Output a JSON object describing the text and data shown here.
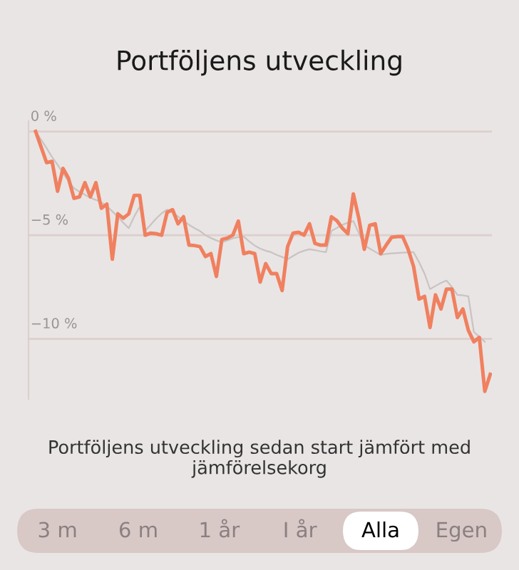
{
  "chart_data": {
    "type": "line",
    "title": "Portföljens utveckling",
    "categories": [
      null,
      null,
      null,
      null,
      null,
      null,
      null,
      null,
      null,
      null,
      null,
      null,
      null,
      null,
      null,
      null,
      null,
      null,
      null,
      null,
      null,
      null,
      null,
      null,
      null,
      null,
      null,
      null,
      null,
      null,
      null,
      null,
      null,
      null,
      null,
      null,
      null,
      null,
      null,
      null,
      null,
      null,
      null,
      null,
      null,
      null,
      null,
      null,
      null,
      null,
      null,
      null,
      null,
      null,
      null,
      null,
      null,
      null,
      null,
      null,
      null,
      null,
      null,
      null,
      null,
      null,
      null,
      null,
      null,
      null,
      null,
      null,
      null,
      null,
      null,
      null,
      null,
      null,
      null,
      null,
      null,
      null,
      null,
      null
    ],
    "series": [
      {
        "color": "#c9c3c2",
        "values": [
          0,
          -0.4,
          -0.8,
          -1.23,
          -1.6,
          -2.0,
          -2.4,
          -2.74,
          -2.9,
          -3.05,
          -3.2,
          -3.3,
          -3.42,
          -3.6,
          -3.85,
          -4.11,
          -4.4,
          -4.66,
          -4.1,
          -3.63,
          -4.79,
          -4.5,
          -4.2,
          -3.95,
          -3.77,
          -3.9,
          -4.1,
          -4.3,
          -4.5,
          -4.66,
          -4.8,
          -5.0,
          -5.14,
          -5.25,
          -5.34,
          -5.25,
          -5.15,
          -5.1,
          -5.07,
          -5.3,
          -5.5,
          -5.65,
          -5.75,
          -5.82,
          -5.95,
          -6.05,
          -6.16,
          -6.0,
          -5.85,
          -5.75,
          -5.68,
          -5.72,
          -5.78,
          -5.82,
          -4.79,
          -4.65,
          -4.5,
          -4.4,
          -4.32,
          -4.9,
          -5.48,
          -5.65,
          -5.8,
          -5.96,
          -5.9,
          -5.88,
          -5.86,
          -5.84,
          -5.83,
          -5.82,
          -6.3,
          -6.85,
          -7.6,
          -7.45,
          -7.3,
          -7.19,
          -7.5,
          -7.88,
          -7.9,
          -7.95,
          -9.66,
          -9.9,
          -10.14,
          null
        ]
      },
      {
        "color": "#f0805f",
        "values": [
          0,
          -0.75,
          -1.5,
          -1.44,
          -2.88,
          -1.78,
          -2.26,
          -3.22,
          -3.15,
          -2.47,
          -3.15,
          -2.47,
          -3.7,
          -3.5,
          -6.16,
          -3.97,
          -4.18,
          -3.97,
          -3.08,
          -3.08,
          -5.0,
          -4.9,
          -4.93,
          -5.0,
          -3.9,
          -3.77,
          -4.45,
          -4.11,
          -5.48,
          -5.5,
          -5.55,
          -6.03,
          -5.89,
          -6.99,
          -5.21,
          -5.14,
          -5.0,
          -4.32,
          -5.89,
          -5.82,
          -5.89,
          -7.26,
          -6.37,
          -6.85,
          -6.85,
          -7.67,
          -5.55,
          -4.9,
          -4.86,
          -5.0,
          -4.45,
          -5.4,
          -5.48,
          -5.48,
          -4.11,
          -4.3,
          -4.66,
          -4.93,
          -3.01,
          -4.18,
          -5.68,
          -4.52,
          -4.45,
          -5.89,
          -5.48,
          -5.1,
          -5.07,
          -5.07,
          -5.68,
          -6.51,
          -8.08,
          -7.95,
          -9.45,
          -7.88,
          -8.56,
          -7.6,
          -7.6,
          -8.97,
          -8.56,
          -9.59,
          -10.14,
          -9.93,
          -12.53,
          -11.71
        ]
      }
    ],
    "ylim": [
      -12.9,
      0.5
    ],
    "yticks": [
      {
        "value": 0,
        "label": "0 %"
      },
      {
        "value": -5,
        "label": "−5 %"
      },
      {
        "value": -10,
        "label": "−10 %"
      }
    ],
    "grid": "y",
    "annotations": [
      "Portföljens utveckling sedan start jämfört med jämförelsekorg",
      "3 m",
      "6 m",
      "1 år",
      "I år",
      "Alla",
      "Egen"
    ]
  }
}
